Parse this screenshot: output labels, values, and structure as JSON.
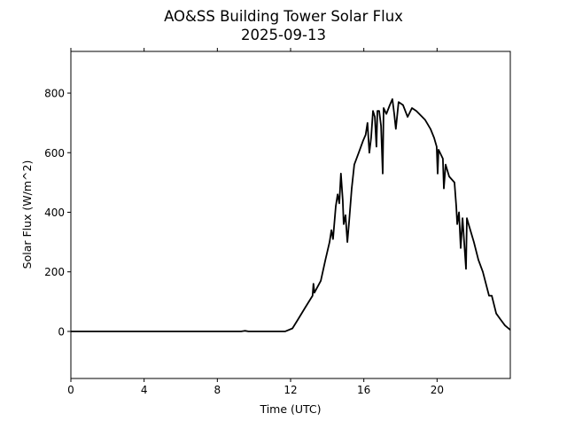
{
  "chart_data": {
    "type": "line",
    "title": "AO&SS Building Tower Solar Flux",
    "subtitle": "2025-09-13",
    "xlabel": "Time (UTC)",
    "ylabel": "Solar Flux (W/m^2)",
    "xlim": [
      0,
      24
    ],
    "ylim": [
      -158,
      940
    ],
    "xticks": [
      0,
      4,
      8,
      12,
      16,
      20
    ],
    "xtick_labels": [
      "0",
      "4",
      "8",
      "12",
      "16",
      "20"
    ],
    "yticks": [
      0,
      200,
      400,
      600,
      800
    ],
    "ytick_labels": [
      "0",
      "200",
      "400",
      "600",
      "800"
    ],
    "grid": false,
    "line_color": "#000000",
    "series": [
      {
        "name": "Solar Flux",
        "x": [
          0,
          9.3,
          9.5,
          9.7,
          11.7,
          12.1,
          12.4,
          12.8,
          13.2,
          13.25,
          13.3,
          13.65,
          13.9,
          14.13,
          14.23,
          14.32,
          14.47,
          14.57,
          14.66,
          14.75,
          14.85,
          14.9,
          15.0,
          15.1,
          15.2,
          15.34,
          15.48,
          15.72,
          15.96,
          16.1,
          16.2,
          16.3,
          16.4,
          16.5,
          16.6,
          16.69,
          16.74,
          16.84,
          16.94,
          17.03,
          17.08,
          17.23,
          17.42,
          17.56,
          17.66,
          17.75,
          17.9,
          18.14,
          18.39,
          18.63,
          18.87,
          19.35,
          19.64,
          19.84,
          19.98,
          20.03,
          20.08,
          20.32,
          20.37,
          20.47,
          20.66,
          20.95,
          21.05,
          21.1,
          21.2,
          21.29,
          21.39,
          21.58,
          21.63,
          21.77,
          22.01,
          22.26,
          22.5,
          22.84,
          22.99,
          23.23,
          23.47,
          23.71,
          24.0
        ],
        "y": [
          0,
          0,
          2,
          0,
          0,
          10,
          40,
          80,
          120,
          160,
          130,
          170,
          240,
          300,
          340,
          310,
          420,
          460,
          430,
          530,
          440,
          360,
          390,
          300,
          370,
          480,
          560,
          600,
          640,
          660,
          700,
          600,
          650,
          740,
          720,
          620,
          740,
          740,
          690,
          530,
          750,
          730,
          760,
          780,
          730,
          680,
          770,
          760,
          720,
          750,
          740,
          710,
          680,
          650,
          620,
          530,
          610,
          580,
          480,
          560,
          520,
          500,
          420,
          360,
          400,
          280,
          380,
          210,
          380,
          350,
          300,
          240,
          200,
          120,
          120,
          60,
          40,
          20,
          5
        ]
      }
    ]
  }
}
